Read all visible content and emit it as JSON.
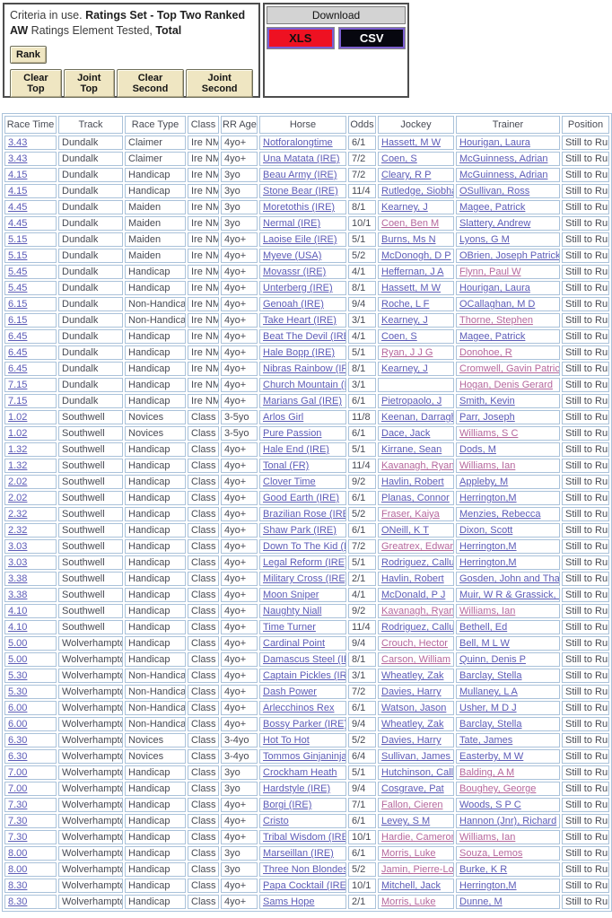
{
  "criteria": {
    "segments": [
      {
        "text": "Criteria in use. ",
        "bold": false
      },
      {
        "text": "Ratings Set - Top Two Ranked AW ",
        "bold": true
      },
      {
        "text": "Ratings Element Tested, ",
        "bold": false
      },
      {
        "text": "Total",
        "bold": true
      }
    ],
    "rank_button": "Rank",
    "buttons": [
      "Clear Top",
      "Joint Top",
      "Clear Second",
      "Joint Second"
    ]
  },
  "download": {
    "title": "Download",
    "xls_label": "XLS",
    "csv_label": "CSV",
    "xls_color": "#ee1122",
    "csv_color": "#07070f",
    "button_border_color": "#7b5ed0"
  },
  "colors": {
    "link": "#5b5bb7",
    "visited_link": "#b5679d",
    "table_border": "#aac2da",
    "button_tan": "#efe6c2"
  },
  "table": {
    "headers": [
      "Race Time",
      "Track",
      "Race Type",
      "Class",
      "RR Age",
      "Horse",
      "Odds",
      "Jockey",
      "Trainer",
      "Position"
    ],
    "rows": [
      {
        "time": "3.43",
        "track": "Dundalk",
        "type": "Claimer",
        "class": "Ire NM",
        "age": "4yo+",
        "horse": "Notforalongtime",
        "odds": "6/1",
        "jockey": "Hassett, M W",
        "trainer": "Hourigan, Laura",
        "pos": "Still to Run"
      },
      {
        "time": "3.43",
        "track": "Dundalk",
        "type": "Claimer",
        "class": "Ire NM",
        "age": "4yo+",
        "horse": "Una Matata (IRE)",
        "odds": "7/2",
        "jockey": "Coen, S",
        "trainer": "McGuinness, Adrian",
        "pos": "Still to Run"
      },
      {
        "time": "4.15",
        "track": "Dundalk",
        "type": "Handicap",
        "class": "Ire NM",
        "age": "3yo",
        "horse": "Beau Army (IRE)",
        "odds": "7/2",
        "jockey": "Cleary, R P",
        "trainer": "McGuinness, Adrian",
        "pos": "Still to Run"
      },
      {
        "time": "4.15",
        "track": "Dundalk",
        "type": "Handicap",
        "class": "Ire NM",
        "age": "3yo",
        "horse": "Stone Bear (IRE)",
        "odds": "11/4",
        "jockey": "Rutledge, Siobhan",
        "trainer": "OSullivan, Ross",
        "pos": "Still to Run"
      },
      {
        "time": "4.45",
        "track": "Dundalk",
        "type": "Maiden",
        "class": "Ire NM",
        "age": "3yo",
        "horse": "Moretothis (IRE)",
        "odds": "8/1",
        "jockey": "Kearney, J",
        "trainer": "Magee, Patrick",
        "pos": "Still to Run"
      },
      {
        "time": "4.45",
        "track": "Dundalk",
        "type": "Maiden",
        "class": "Ire NM",
        "age": "3yo",
        "horse": "Nermal (IRE)",
        "odds": "10/1",
        "jockey": "Coen, Ben M",
        "jv": true,
        "trainer": "Slattery, Andrew",
        "pos": "Still to Run"
      },
      {
        "time": "5.15",
        "track": "Dundalk",
        "type": "Maiden",
        "class": "Ire NM",
        "age": "4yo+",
        "horse": "Laoise Eile (IRE)",
        "odds": "5/1",
        "jockey": "Burns, Ms N",
        "trainer": "Lyons, G M",
        "pos": "Still to Run"
      },
      {
        "time": "5.15",
        "track": "Dundalk",
        "type": "Maiden",
        "class": "Ire NM",
        "age": "4yo+",
        "horse": "Myeve (USA)",
        "odds": "5/2",
        "jockey": "McDonogh, D P",
        "trainer": "OBrien, Joseph Patrick",
        "pos": "Still to Run"
      },
      {
        "time": "5.45",
        "track": "Dundalk",
        "type": "Handicap",
        "class": "Ire NM",
        "age": "4yo+",
        "horse": "Movassr (IRE)",
        "odds": "4/1",
        "jockey": "Heffernan, J A",
        "trainer": "Flynn, Paul W",
        "tv": true,
        "pos": "Still to Run"
      },
      {
        "time": "5.45",
        "track": "Dundalk",
        "type": "Handicap",
        "class": "Ire NM",
        "age": "4yo+",
        "horse": "Unterberg (IRE)",
        "odds": "8/1",
        "jockey": "Hassett, M W",
        "trainer": "Hourigan, Laura",
        "pos": "Still to Run"
      },
      {
        "time": "6.15",
        "track": "Dundalk",
        "type": "Non-Handicap",
        "class": "Ire NM",
        "age": "4yo+",
        "horse": "Genoah (IRE)",
        "odds": "9/4",
        "jockey": "Roche, L F",
        "trainer": "OCallaghan, M D",
        "pos": "Still to Run"
      },
      {
        "time": "6.15",
        "track": "Dundalk",
        "type": "Non-Handicap",
        "class": "Ire NM",
        "age": "4yo+",
        "horse": "Take Heart (IRE)",
        "odds": "3/1",
        "jockey": "Kearney, J",
        "trainer": "Thorne, Stephen",
        "tv": true,
        "pos": "Still to Run"
      },
      {
        "time": "6.45",
        "track": "Dundalk",
        "type": "Handicap",
        "class": "Ire NM",
        "age": "4yo+",
        "horse": "Beat The Devil (IRE)",
        "odds": "4/1",
        "jockey": "Coen, S",
        "trainer": "Magee, Patrick",
        "pos": "Still to Run"
      },
      {
        "time": "6.45",
        "track": "Dundalk",
        "type": "Handicap",
        "class": "Ire NM",
        "age": "4yo+",
        "horse": "Hale Bopp (IRE)",
        "odds": "5/1",
        "jockey": "Ryan, J J G",
        "jv": true,
        "trainer": "Donohoe, R",
        "tv": true,
        "pos": "Still to Run"
      },
      {
        "time": "6.45",
        "track": "Dundalk",
        "type": "Handicap",
        "class": "Ire NM",
        "age": "4yo+",
        "horse": "Nibras Rainbow (IRE)",
        "odds": "8/1",
        "jockey": "Kearney, J",
        "trainer": "Cromwell, Gavin Patrick",
        "tv": true,
        "pos": "Still to Run"
      },
      {
        "time": "7.15",
        "track": "Dundalk",
        "type": "Handicap",
        "class": "Ire NM",
        "age": "4yo+",
        "horse": "Church Mountain (IRE)",
        "odds": "3/1",
        "jockey": "",
        "trainer": "Hogan, Denis Gerard",
        "tv": true,
        "pos": "Still to Run"
      },
      {
        "time": "7.15",
        "track": "Dundalk",
        "type": "Handicap",
        "class": "Ire NM",
        "age": "4yo+",
        "horse": "Marians Gal (IRE)",
        "odds": "6/1",
        "jockey": "Pietropaolo, J",
        "trainer": "Smith, Kevin",
        "pos": "Still to Run"
      },
      {
        "time": "1.02",
        "track": "Southwell",
        "type": "Novices",
        "class": "Class 5",
        "age": "3-5yo",
        "horse": "Arlos Girl",
        "odds": "11/8",
        "jockey": "Keenan, Darragh",
        "trainer": "Parr, Joseph",
        "pos": "Still to Run"
      },
      {
        "time": "1.02",
        "track": "Southwell",
        "type": "Novices",
        "class": "Class 5",
        "age": "3-5yo",
        "horse": "Pure Passion",
        "odds": "6/1",
        "jockey": "Dace, Jack",
        "trainer": "Williams, S C",
        "tv": true,
        "pos": "Still to Run"
      },
      {
        "time": "1.32",
        "track": "Southwell",
        "type": "Handicap",
        "class": "Class 5",
        "age": "4yo+",
        "horse": "Hale End (IRE)",
        "odds": "5/1",
        "jockey": "Kirrane, Sean",
        "trainer": "Dods, M",
        "pos": "Still to Run"
      },
      {
        "time": "1.32",
        "track": "Southwell",
        "type": "Handicap",
        "class": "Class 5",
        "age": "4yo+",
        "horse": "Tonal (FR)",
        "odds": "11/4",
        "jockey": "Kavanagh, Ryan",
        "jv": true,
        "trainer": "Williams, Ian",
        "tv": true,
        "pos": "Still to Run"
      },
      {
        "time": "2.02",
        "track": "Southwell",
        "type": "Handicap",
        "class": "Class 6",
        "age": "4yo+",
        "horse": "Clover Time",
        "odds": "9/2",
        "jockey": "Havlin, Robert",
        "trainer": "Appleby, M",
        "pos": "Still to Run"
      },
      {
        "time": "2.02",
        "track": "Southwell",
        "type": "Handicap",
        "class": "Class 6",
        "age": "4yo+",
        "horse": "Good Earth (IRE)",
        "odds": "6/1",
        "jockey": "Planas, Connor",
        "trainer": "Herrington,M",
        "pos": "Still to Run"
      },
      {
        "time": "2.32",
        "track": "Southwell",
        "type": "Handicap",
        "class": "Class 5",
        "age": "4yo+",
        "horse": "Brazilian Rose (IRE)",
        "odds": "5/2",
        "jockey": "Fraser, Kaiya",
        "jv": true,
        "trainer": "Menzies, Rebecca",
        "pos": "Still to Run"
      },
      {
        "time": "2.32",
        "track": "Southwell",
        "type": "Handicap",
        "class": "Class 5",
        "age": "4yo+",
        "horse": "Shaw Park (IRE)",
        "odds": "6/1",
        "jockey": "ONeill, K T",
        "trainer": "Dixon, Scott",
        "pos": "Still to Run"
      },
      {
        "time": "3.03",
        "track": "Southwell",
        "type": "Handicap",
        "class": "Class 3",
        "age": "4yo+",
        "horse": "Down To The Kid (IRE)",
        "odds": "7/2",
        "jockey": "Greatrex, Edward",
        "jv": true,
        "trainer": "Herrington,M",
        "pos": "Still to Run"
      },
      {
        "time": "3.03",
        "track": "Southwell",
        "type": "Handicap",
        "class": "Class 3",
        "age": "4yo+",
        "horse": "Legal Reform (IRE)",
        "odds": "5/1",
        "jockey": "Rodriguez, Callum",
        "trainer": "Herrington,M",
        "pos": "Still to Run"
      },
      {
        "time": "3.38",
        "track": "Southwell",
        "type": "Handicap",
        "class": "Class 4",
        "age": "4yo+",
        "horse": "Military Cross (IRE)",
        "odds": "2/1",
        "jockey": "Havlin, Robert",
        "trainer": "Gosden, John and Thady",
        "pos": "Still to Run"
      },
      {
        "time": "3.38",
        "track": "Southwell",
        "type": "Handicap",
        "class": "Class 4",
        "age": "4yo+",
        "horse": "Moon Sniper",
        "odds": "4/1",
        "jockey": "McDonald, P J",
        "trainer": "Muir, W R & Grassick, C",
        "pos": "Still to Run"
      },
      {
        "time": "4.10",
        "track": "Southwell",
        "type": "Handicap",
        "class": "Class 6",
        "age": "4yo+",
        "horse": "Naughty Niall",
        "odds": "9/2",
        "jockey": "Kavanagh, Ryan",
        "jv": true,
        "trainer": "Williams, Ian",
        "tv": true,
        "pos": "Still to Run"
      },
      {
        "time": "4.10",
        "track": "Southwell",
        "type": "Handicap",
        "class": "Class 6",
        "age": "4yo+",
        "horse": "Time Turner",
        "odds": "11/4",
        "jockey": "Rodriguez, Callum",
        "trainer": "Bethell, Ed",
        "pos": "Still to Run"
      },
      {
        "time": "5.00",
        "track": "Wolverhampton",
        "type": "Handicap",
        "class": "Class 4",
        "age": "4yo+",
        "horse": "Cardinal Point",
        "odds": "9/4",
        "jockey": "Crouch, Hector",
        "jv": true,
        "trainer": "Bell, M L W",
        "pos": "Still to Run"
      },
      {
        "time": "5.00",
        "track": "Wolverhampton",
        "type": "Handicap",
        "class": "Class 4",
        "age": "4yo+",
        "horse": "Damascus Steel (IRE)",
        "odds": "8/1",
        "jockey": "Carson, William",
        "jv": true,
        "trainer": "Quinn, Denis P",
        "pos": "Still to Run"
      },
      {
        "time": "5.30",
        "track": "Wolverhampton",
        "type": "Non-Handicap",
        "class": "Class 6",
        "age": "4yo+",
        "horse": "Captain Pickles (IRE)",
        "odds": "3/1",
        "jockey": "Wheatley, Zak",
        "trainer": "Barclay, Stella",
        "pos": "Still to Run"
      },
      {
        "time": "5.30",
        "track": "Wolverhampton",
        "type": "Non-Handicap",
        "class": "Class 6",
        "age": "4yo+",
        "horse": "Dash Power",
        "odds": "7/2",
        "jockey": "Davies, Harry",
        "trainer": "Mullaney, L A",
        "pos": "Still to Run"
      },
      {
        "time": "6.00",
        "track": "Wolverhampton",
        "type": "Non-Handicap",
        "class": "Class 6",
        "age": "4yo+",
        "horse": "Arlecchinos Rex",
        "odds": "6/1",
        "jockey": "Watson, Jason",
        "trainer": "Usher, M D J",
        "pos": "Still to Run"
      },
      {
        "time": "6.00",
        "track": "Wolverhampton",
        "type": "Non-Handicap",
        "class": "Class 6",
        "age": "4yo+",
        "horse": "Bossy Parker (IRE)",
        "odds": "9/4",
        "jockey": "Wheatley, Zak",
        "trainer": "Barclay, Stella",
        "pos": "Still to Run"
      },
      {
        "time": "6.30",
        "track": "Wolverhampton",
        "type": "Novices",
        "class": "Class 4",
        "age": "3-4yo",
        "horse": "Hot To Hot",
        "odds": "5/2",
        "jockey": "Davies, Harry",
        "trainer": "Tate, James",
        "pos": "Still to Run"
      },
      {
        "time": "6.30",
        "track": "Wolverhampton",
        "type": "Novices",
        "class": "Class 4",
        "age": "3-4yo",
        "horse": "Tommos Ginjaninja",
        "odds": "6/4",
        "jockey": "Sullivan, James P",
        "trainer": "Easterby, M W",
        "pos": "Still to Run"
      },
      {
        "time": "7.00",
        "track": "Wolverhampton",
        "type": "Handicap",
        "class": "Class 5",
        "age": "3yo",
        "horse": "Crockham Heath",
        "odds": "5/1",
        "jockey": "Hutchinson, Callum",
        "trainer": "Balding, A M",
        "tv": true,
        "pos": "Still to Run"
      },
      {
        "time": "7.00",
        "track": "Wolverhampton",
        "type": "Handicap",
        "class": "Class 5",
        "age": "3yo",
        "horse": "Hardstyle (IRE)",
        "odds": "9/4",
        "jockey": "Cosgrave, Pat",
        "trainer": "Boughey, George",
        "tv": true,
        "pos": "Still to Run"
      },
      {
        "time": "7.30",
        "track": "Wolverhampton",
        "type": "Handicap",
        "class": "Class 4",
        "age": "4yo+",
        "horse": "Borgi (IRE)",
        "odds": "7/1",
        "jockey": "Fallon, Cieren",
        "jv": true,
        "trainer": "Woods, S P C",
        "pos": "Still to Run"
      },
      {
        "time": "7.30",
        "track": "Wolverhampton",
        "type": "Handicap",
        "class": "Class 4",
        "age": "4yo+",
        "horse": "Cristo",
        "odds": "6/1",
        "jockey": "Levey, S M",
        "trainer": "Hannon (Jnr), Richard",
        "pos": "Still to Run"
      },
      {
        "time": "7.30",
        "track": "Wolverhampton",
        "type": "Handicap",
        "class": "Class 4",
        "age": "4yo+",
        "horse": "Tribal Wisdom (IRE)",
        "odds": "10/1",
        "jockey": "Hardie, Cameron",
        "jv": true,
        "trainer": "Williams, Ian",
        "tv": true,
        "pos": "Still to Run"
      },
      {
        "time": "8.00",
        "track": "Wolverhampton",
        "type": "Handicap",
        "class": "Class 5",
        "age": "3yo",
        "horse": "Marseillan (IRE)",
        "odds": "6/1",
        "jockey": "Morris, Luke",
        "jv": true,
        "trainer": "Souza, Lemos",
        "tv": true,
        "pos": "Still to Run"
      },
      {
        "time": "8.00",
        "track": "Wolverhampton",
        "type": "Handicap",
        "class": "Class 5",
        "age": "3yo",
        "horse": "Three Non Blondes",
        "odds": "5/2",
        "jockey": "Jamin, Pierre-Louis",
        "jv": true,
        "trainer": "Burke, K R",
        "pos": "Still to Run"
      },
      {
        "time": "8.30",
        "track": "Wolverhampton",
        "type": "Handicap",
        "class": "Class 5",
        "age": "4yo+",
        "horse": "Papa Cocktail (IRE)",
        "odds": "10/1",
        "jockey": "Mitchell, Jack",
        "trainer": "Herrington,M",
        "pos": "Still to Run"
      },
      {
        "time": "8.30",
        "track": "Wolverhampton",
        "type": "Handicap",
        "class": "Class 5",
        "age": "4yo+",
        "horse": "Sams Hope",
        "odds": "2/1",
        "jockey": "Morris, Luke",
        "jv": true,
        "trainer": "Dunne, M",
        "pos": "Still to Run"
      }
    ]
  }
}
